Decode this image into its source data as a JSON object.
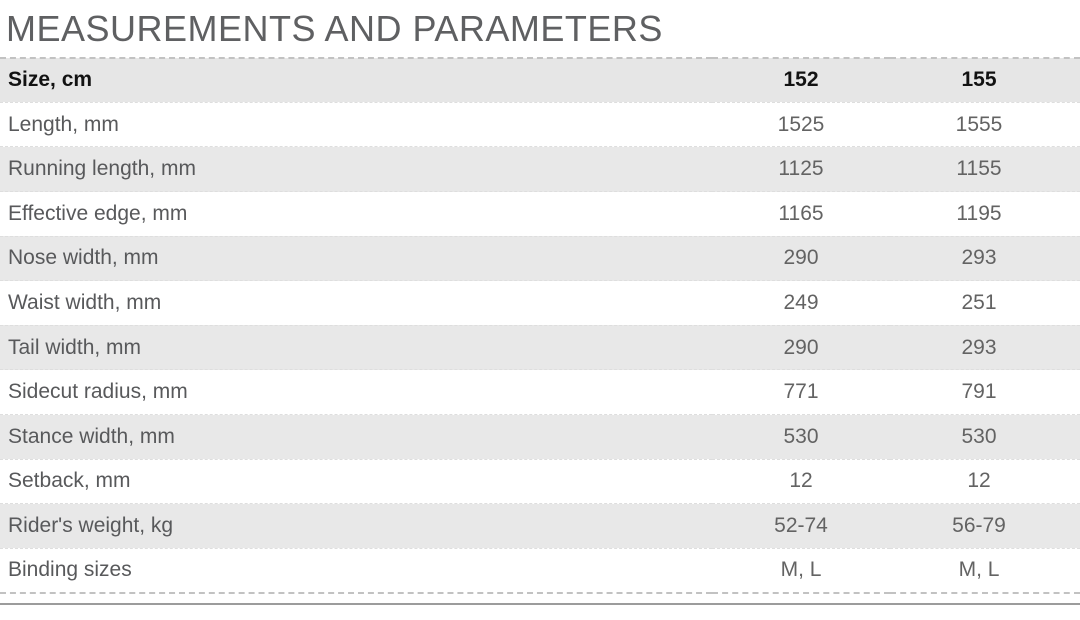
{
  "title": "MEASUREMENTS AND PARAMETERS",
  "table": {
    "header": {
      "label": "Size, cm",
      "values": [
        "152",
        "155"
      ]
    },
    "rows": [
      {
        "label": "Length, mm",
        "values": [
          "1525",
          "1555"
        ]
      },
      {
        "label": "Running length, mm",
        "values": [
          "1125",
          "1155"
        ]
      },
      {
        "label": "Effective edge, mm",
        "values": [
          "1165",
          "1195"
        ]
      },
      {
        "label": "Nose width, mm",
        "values": [
          "290",
          "293"
        ]
      },
      {
        "label": "Waist width, mm",
        "values": [
          "249",
          "251"
        ]
      },
      {
        "label": "Tail width, mm",
        "values": [
          "290",
          "293"
        ]
      },
      {
        "label": "Sidecut radius, mm",
        "values": [
          "771",
          "791"
        ]
      },
      {
        "label": "Stance width, mm",
        "values": [
          "530",
          "530"
        ]
      },
      {
        "label": "Setback, mm",
        "values": [
          "12",
          "12"
        ]
      },
      {
        "label": "Rider's weight, kg",
        "values": [
          "52-74",
          "56-79"
        ]
      },
      {
        "label": "Binding sizes",
        "values": [
          "M, L",
          "M, L"
        ]
      }
    ]
  },
  "colors": {
    "title_text": "#5f6062",
    "header_text": "#121212",
    "body_text": "#58595b",
    "row_alt_background": "#e8e8e8",
    "dashed_divider": "#c2c2c2",
    "bottom_rule": "#9c9c9c"
  }
}
